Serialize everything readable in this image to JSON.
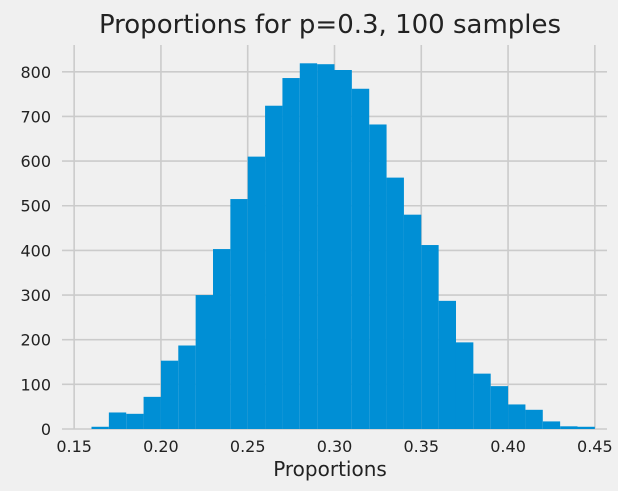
{
  "chart_data": {
    "type": "bar",
    "title": "Proportions for p=0.3, 100 samples",
    "xlabel": "Proportions",
    "ylabel": "",
    "xlim": [
      0.143,
      0.457
    ],
    "ylim": [
      0,
      860
    ],
    "xticks": [
      "0.15",
      "0.20",
      "0.25",
      "0.30",
      "0.35",
      "0.40",
      "0.45"
    ],
    "yticks": [
      "0",
      "100",
      "200",
      "300",
      "400",
      "500",
      "600",
      "700",
      "800"
    ],
    "grid": true,
    "bin_width": 0.01,
    "bins": [
      {
        "x0": 0.16,
        "x1": 0.17,
        "count": 5
      },
      {
        "x0": 0.17,
        "x1": 0.18,
        "count": 37
      },
      {
        "x0": 0.18,
        "x1": 0.19,
        "count": 34
      },
      {
        "x0": 0.19,
        "x1": 0.2,
        "count": 72
      },
      {
        "x0": 0.2,
        "x1": 0.21,
        "count": 153
      },
      {
        "x0": 0.21,
        "x1": 0.22,
        "count": 187
      },
      {
        "x0": 0.22,
        "x1": 0.23,
        "count": 300
      },
      {
        "x0": 0.23,
        "x1": 0.24,
        "count": 403
      },
      {
        "x0": 0.24,
        "x1": 0.25,
        "count": 515
      },
      {
        "x0": 0.25,
        "x1": 0.26,
        "count": 610
      },
      {
        "x0": 0.26,
        "x1": 0.27,
        "count": 724
      },
      {
        "x0": 0.27,
        "x1": 0.28,
        "count": 786
      },
      {
        "x0": 0.28,
        "x1": 0.29,
        "count": 819
      },
      {
        "x0": 0.29,
        "x1": 0.3,
        "count": 817
      },
      {
        "x0": 0.3,
        "x1": 0.31,
        "count": 804
      },
      {
        "x0": 0.31,
        "x1": 0.32,
        "count": 762
      },
      {
        "x0": 0.32,
        "x1": 0.33,
        "count": 682
      },
      {
        "x0": 0.33,
        "x1": 0.34,
        "count": 563
      },
      {
        "x0": 0.34,
        "x1": 0.35,
        "count": 480
      },
      {
        "x0": 0.35,
        "x1": 0.36,
        "count": 412
      },
      {
        "x0": 0.36,
        "x1": 0.37,
        "count": 287
      },
      {
        "x0": 0.37,
        "x1": 0.38,
        "count": 194
      },
      {
        "x0": 0.38,
        "x1": 0.39,
        "count": 124
      },
      {
        "x0": 0.39,
        "x1": 0.4,
        "count": 96
      },
      {
        "x0": 0.4,
        "x1": 0.41,
        "count": 55
      },
      {
        "x0": 0.41,
        "x1": 0.42,
        "count": 43
      },
      {
        "x0": 0.42,
        "x1": 0.43,
        "count": 17
      },
      {
        "x0": 0.43,
        "x1": 0.44,
        "count": 6
      },
      {
        "x0": 0.44,
        "x1": 0.45,
        "count": 5
      }
    ],
    "colors": {
      "bar": "#008fd5",
      "background": "#f0f0f0",
      "grid": "#cbcbcb"
    }
  }
}
